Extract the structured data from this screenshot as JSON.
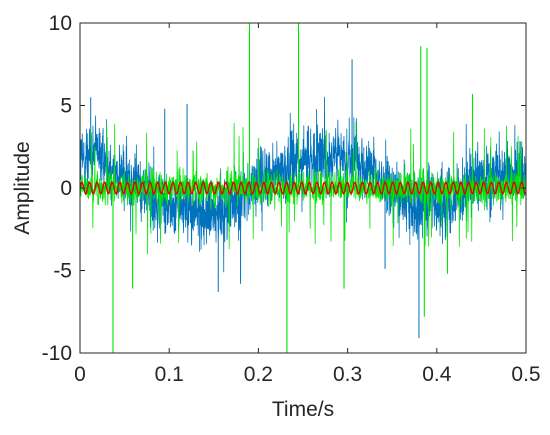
{
  "chart_data": {
    "type": "line",
    "title": "",
    "xlabel": "Time/s",
    "ylabel": "Amplitude",
    "xlim": [
      0,
      0.5
    ],
    "ylim": [
      -10,
      10
    ],
    "x_ticks": [
      "0",
      "0.1",
      "0.2",
      "0.3",
      "0.4",
      "0.5"
    ],
    "y_ticks": [
      "10",
      "5",
      "0",
      "-5",
      "-10"
    ],
    "grid": false,
    "legend": "none",
    "series": [
      {
        "color": "#0072bd",
        "description_role": "noisy signal",
        "envelope_t": [
          0,
          0.02,
          0.04,
          0.06,
          0.08,
          0.1,
          0.12,
          0.14,
          0.15,
          0.16,
          0.18,
          0.2,
          0.22,
          0.24,
          0.26,
          0.28,
          0.3,
          0.32,
          0.34,
          0.36,
          0.38,
          0.4,
          0.42,
          0.44,
          0.46,
          0.48,
          0.5
        ],
        "envelope_center": [
          1.8,
          2.0,
          1.2,
          0.3,
          -0.5,
          -0.9,
          -1.3,
          -1.6,
          -1.7,
          -1.4,
          -0.6,
          0.4,
          1.2,
          1.6,
          1.7,
          1.8,
          1.9,
          1.3,
          0.3,
          -0.6,
          -1.0,
          -0.8,
          -0.4,
          0.2,
          0.6,
          0.9,
          1.2
        ],
        "noise_amplitude": 2.4,
        "extremes": [
          {
            "t": 0.012,
            "y": 5.5
          },
          {
            "t": 0.095,
            "y": 4.8
          },
          {
            "t": 0.12,
            "y": 5.1
          },
          {
            "t": 0.305,
            "y": 7.8
          },
          {
            "t": 0.155,
            "y": -6.3
          },
          {
            "t": 0.18,
            "y": -5.8
          },
          {
            "t": 0.38,
            "y": -9.1
          },
          {
            "t": 0.342,
            "y": -4.9
          },
          {
            "t": 0.5,
            "y": 5.0
          }
        ]
      },
      {
        "color": "#00e600",
        "description_role": "impulse train",
        "base_amplitude": 1.2,
        "spikes": [
          {
            "t": 0.037,
            "y": -10
          },
          {
            "t": 0.059,
            "y": -6.1
          },
          {
            "t": 0.19,
            "y": 10
          },
          {
            "t": 0.232,
            "y": -10
          },
          {
            "t": 0.245,
            "y": 10
          },
          {
            "t": 0.296,
            "y": -6.1
          },
          {
            "t": 0.382,
            "y": 8.6
          },
          {
            "t": 0.389,
            "y": 8.5
          },
          {
            "t": 0.386,
            "y": -7.8
          },
          {
            "t": 0.44,
            "y": 5.7
          },
          {
            "t": 0.412,
            "y": -5.2
          },
          {
            "t": 0.276,
            "y": 3.5
          },
          {
            "t": 0.0,
            "y": 5.1
          }
        ]
      },
      {
        "color": "#e60000",
        "description_role": "clean periodic component",
        "amplitude": 0.35,
        "period": 0.0085
      }
    ]
  }
}
